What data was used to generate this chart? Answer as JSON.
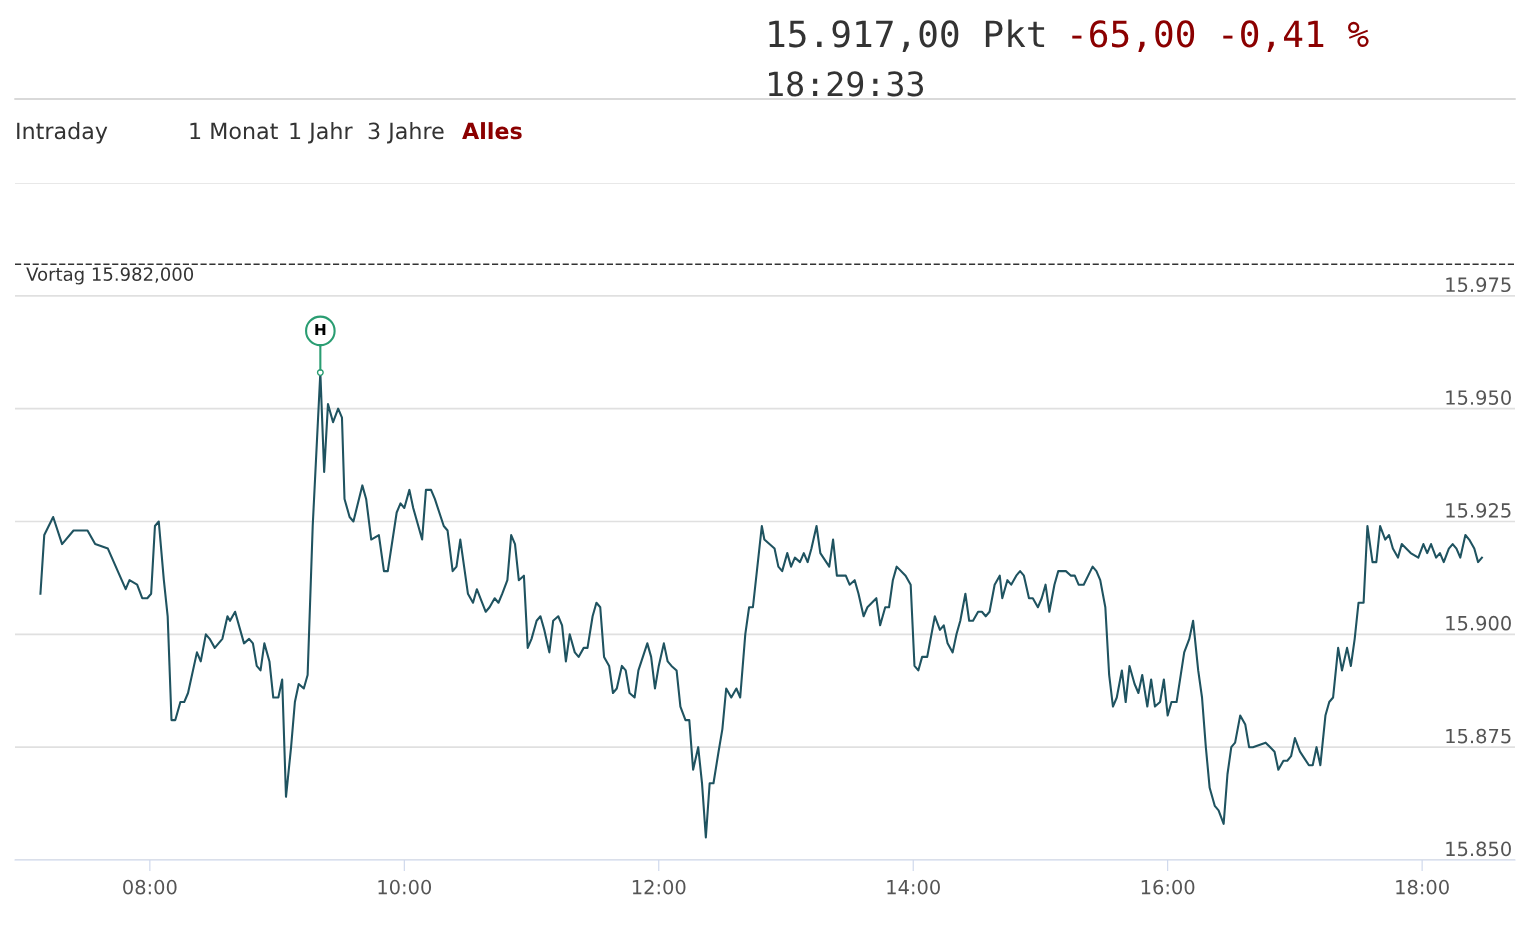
{
  "chart_data": {
    "type": "line",
    "annotations": [
      "15.917,00 Pkt",
      "-65,00",
      "-0,41 %",
      "18:29:33",
      "Intraday",
      "1 Monat",
      "1 Jahr",
      "3 Jahre",
      "Alles",
      {
        "text": "H",
        "x": 9.34,
        "y": 15958
      }
    ],
    "series": [
      {
        "color": "#1f5360",
        "x": [
          7.14,
          7.17,
          7.24,
          7.31,
          7.4,
          7.51,
          7.57,
          7.67,
          7.81,
          7.84,
          7.9,
          7.94,
          7.98,
          8.01,
          8.04,
          8.07,
          8.11,
          8.14,
          8.17,
          8.2,
          8.24,
          8.27,
          8.3,
          8.37,
          8.4,
          8.44,
          8.47,
          8.51,
          8.57,
          8.61,
          8.63,
          8.67,
          8.74,
          8.78,
          8.81,
          8.84,
          8.87,
          8.9,
          8.94,
          8.97,
          9.01,
          9.04,
          9.07,
          9.11,
          9.14,
          9.17,
          9.21,
          9.24,
          9.28,
          9.34,
          9.37,
          9.4,
          9.44,
          9.48,
          9.51,
          9.53,
          9.57,
          9.6,
          9.67,
          9.7,
          9.74,
          9.8,
          9.84,
          9.87,
          9.94,
          9.97,
          10.0,
          10.04,
          10.07,
          10.14,
          10.17,
          10.21,
          10.24,
          10.31,
          10.34,
          10.38,
          10.41,
          10.44,
          10.5,
          10.54,
          10.57,
          10.64,
          10.67,
          10.71,
          10.74,
          10.77,
          10.81,
          10.84,
          10.87,
          10.9,
          10.94,
          10.97,
          11.0,
          11.04,
          11.07,
          11.1,
          11.14,
          11.17,
          11.21,
          11.24,
          11.27,
          11.3,
          11.34,
          11.37,
          11.41,
          11.44,
          11.48,
          11.51,
          11.54,
          11.57,
          11.61,
          11.64,
          11.67,
          11.71,
          11.74,
          11.77,
          11.81,
          11.84,
          11.91,
          11.94,
          11.97,
          12.0,
          12.04,
          12.07,
          12.1,
          12.14,
          12.17,
          12.21,
          12.24,
          12.27,
          12.31,
          12.34,
          12.37,
          12.4,
          12.43,
          12.47,
          12.5,
          12.53,
          12.57,
          12.61,
          12.64,
          12.68,
          12.71,
          12.74,
          12.81,
          12.83,
          12.91,
          12.94,
          12.97,
          13.01,
          13.04,
          13.07,
          13.11,
          13.14,
          13.17,
          13.2,
          13.24,
          13.27,
          13.34,
          13.37,
          13.4,
          13.47,
          13.5,
          13.54,
          13.57,
          13.61,
          13.64,
          13.71,
          13.74,
          13.78,
          13.81,
          13.84,
          13.87,
          13.94,
          13.98,
          14.01,
          14.04,
          14.07,
          14.11,
          14.17,
          14.21,
          14.24,
          14.27,
          14.31,
          14.34,
          14.37,
          14.41,
          14.44,
          14.47,
          14.51,
          14.54,
          14.57,
          14.6,
          14.64,
          14.68,
          14.7,
          14.74,
          14.77,
          14.81,
          14.84,
          14.87,
          14.91,
          14.94,
          14.98,
          15.01,
          15.04,
          15.07,
          15.11,
          15.14,
          15.2,
          15.24,
          15.27,
          15.3,
          15.34,
          15.41,
          15.44,
          15.47,
          15.51,
          15.54,
          15.57,
          15.6,
          15.64,
          15.67,
          15.7,
          15.74,
          15.77,
          15.8,
          15.84,
          15.87,
          15.9,
          15.94,
          15.97,
          16.0,
          16.03,
          16.07,
          16.13,
          16.17,
          16.2,
          16.24,
          16.27,
          16.3,
          16.33,
          16.37,
          16.4,
          16.44,
          16.47,
          16.5,
          16.53,
          16.57,
          16.61,
          16.64,
          16.67,
          16.77,
          16.84,
          16.87,
          16.91,
          16.94,
          16.97,
          17.0,
          17.04,
          17.11,
          17.14,
          17.17,
          17.2,
          17.24,
          17.27,
          17.3,
          17.34,
          17.37,
          17.41,
          17.44,
          17.47,
          17.5,
          17.54,
          17.57,
          17.61,
          17.64,
          17.67,
          17.71,
          17.74,
          17.77,
          17.81,
          17.84,
          17.91,
          17.97,
          18.01,
          18.04,
          18.07,
          18.11,
          18.14,
          18.17,
          18.21,
          18.24,
          18.27,
          18.3,
          18.34,
          18.37,
          18.41,
          18.44,
          18.47
        ],
        "values": [
          15909,
          15922,
          15926,
          15920,
          15923,
          15923,
          15920,
          15919,
          15910,
          15912,
          15911,
          15908,
          15908,
          15909,
          15924,
          15925,
          15912,
          15904,
          15881,
          15881,
          15885,
          15885,
          15887,
          15896,
          15894,
          15900,
          15899,
          15897,
          15899,
          15904,
          15903,
          15905,
          15898,
          15899,
          15898,
          15893,
          15892,
          15898,
          15894,
          15886,
          15886,
          15890,
          15864,
          15875,
          15885,
          15889,
          15888,
          15891,
          15924,
          15958,
          15936,
          15951,
          15947,
          15950,
          15948,
          15930,
          15926,
          15925,
          15933,
          15930,
          15921,
          15922,
          15914,
          15914,
          15927,
          15929,
          15928,
          15932,
          15928,
          15921,
          15932,
          15932,
          15930,
          15924,
          15923,
          15914,
          15915,
          15921,
          15909,
          15907,
          15910,
          15905,
          15906,
          15908,
          15907,
          15909,
          15912,
          15922,
          15920,
          15912,
          15913,
          15897,
          15899,
          15903,
          15904,
          15901,
          15896,
          15903,
          15904,
          15902,
          15894,
          15900,
          15896,
          15895,
          15897,
          15897,
          15904,
          15907,
          15906,
          15895,
          15893,
          15887,
          15888,
          15893,
          15892,
          15887,
          15886,
          15892,
          15898,
          15895,
          15888,
          15893,
          15898,
          15894,
          15893,
          15892,
          15884,
          15881,
          15881,
          15870,
          15875,
          15867,
          15855,
          15867,
          15867,
          15874,
          15879,
          15888,
          15886,
          15888,
          15886,
          15900,
          15906,
          15906,
          15924,
          15921,
          15919,
          15915,
          15914,
          15918,
          15915,
          15917,
          15916,
          15918,
          15916,
          15919,
          15924,
          15918,
          15915,
          15921,
          15913,
          15913,
          15911,
          15912,
          15909,
          15904,
          15906,
          15908,
          15902,
          15906,
          15906,
          15912,
          15915,
          15913,
          15911,
          15893,
          15892,
          15895,
          15895,
          15904,
          15901,
          15902,
          15898,
          15896,
          15900,
          15903,
          15909,
          15903,
          15903,
          15905,
          15905,
          15904,
          15905,
          15911,
          15913,
          15908,
          15912,
          15911,
          15913,
          15914,
          15913,
          15908,
          15908,
          15906,
          15908,
          15911,
          15905,
          15911,
          15914,
          15914,
          15913,
          15913,
          15911,
          15911,
          15915,
          15914,
          15912,
          15906,
          15891,
          15884,
          15886,
          15892,
          15885,
          15893,
          15889,
          15887,
          15891,
          15884,
          15890,
          15884,
          15885,
          15890,
          15882,
          15885,
          15885,
          15896,
          15899,
          15903,
          15892,
          15886,
          15875,
          15866,
          15862,
          15861,
          15858,
          15869,
          15875,
          15876,
          15882,
          15880,
          15875,
          15875,
          15876,
          15874,
          15870,
          15872,
          15872,
          15873,
          15877,
          15874,
          15871,
          15871,
          15875,
          15871,
          15882,
          15885,
          15886,
          15897,
          15892,
          15897,
          15893,
          15899,
          15907,
          15907,
          15924,
          15916,
          15916,
          15924,
          15921,
          15922,
          15919,
          15917,
          15920,
          15918,
          15917,
          15920,
          15918,
          15920,
          15917,
          15918,
          15916,
          15919,
          15920,
          15919,
          15917,
          15922,
          15921,
          15919,
          15916,
          15917
        ]
      }
    ],
    "xlim": [
      6.94,
      18.73
    ],
    "xticks": [
      {
        "value": 8,
        "label": "08:00"
      },
      {
        "value": 10,
        "label": "10:00"
      },
      {
        "value": 12,
        "label": "12:00"
      },
      {
        "value": 14,
        "label": "14:00"
      },
      {
        "value": 16,
        "label": "16:00"
      },
      {
        "value": 18,
        "label": "18:00"
      }
    ],
    "ylim": [
      15850,
      16000
    ],
    "yticks": [
      {
        "value": 15850,
        "label": "15.850"
      },
      {
        "value": 15875,
        "label": "15.875"
      },
      {
        "value": 15900,
        "label": "15.900"
      },
      {
        "value": 15925,
        "label": "15.925"
      },
      {
        "value": 15950,
        "label": "15.950"
      },
      {
        "value": 15975,
        "label": "15.975"
      },
      {
        "value": 16000,
        "label": null
      }
    ],
    "ref_lines": [
      {
        "axis": "y",
        "value": 15982,
        "label": "Vortag 15.982,000",
        "color": "#333333",
        "line_style": "dashed"
      }
    ],
    "grid": "y",
    "marker": "none",
    "line_style": "solid"
  }
}
